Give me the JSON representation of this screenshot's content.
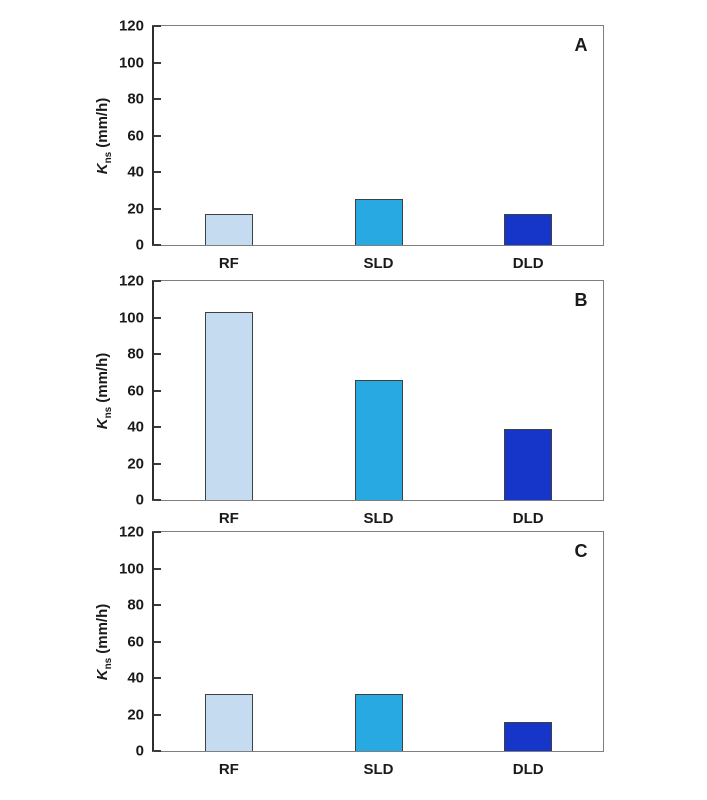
{
  "axis": {
    "ylabel_k": "K",
    "ylabel_sub": "ns",
    "ylabel_unit": "(mm/h)"
  },
  "colors": {
    "bar_fills": [
      "#C5DCF0",
      "#29A9E1",
      "#1636C9"
    ],
    "bar_border": "#404040",
    "frame": "#7e7e7e",
    "axis_line": "#2e2e2e",
    "text": "#1a1a1a"
  },
  "chart_data": [
    {
      "type": "bar",
      "panel_label": "A",
      "categories": [
        "RF",
        "SLD",
        "DLD"
      ],
      "values": [
        17,
        25,
        17
      ],
      "title": "",
      "xlabel": "",
      "ylabel": "Kns (mm/h)",
      "ylim": [
        0,
        120
      ],
      "yticks": [
        0,
        20,
        40,
        60,
        80,
        100,
        120
      ],
      "grid": false,
      "legend": "none"
    },
    {
      "type": "bar",
      "panel_label": "B",
      "categories": [
        "RF",
        "SLD",
        "DLD"
      ],
      "values": [
        103,
        66,
        39
      ],
      "title": "",
      "xlabel": "",
      "ylabel": "Kns (mm/h)",
      "ylim": [
        0,
        120
      ],
      "yticks": [
        0,
        20,
        40,
        60,
        80,
        100,
        120
      ],
      "grid": false,
      "legend": "none"
    },
    {
      "type": "bar",
      "panel_label": "C",
      "categories": [
        "RF",
        "SLD",
        "DLD"
      ],
      "values": [
        31,
        31,
        16
      ],
      "title": "",
      "xlabel": "",
      "ylabel": "Kns (mm/h)",
      "ylim": [
        0,
        120
      ],
      "yticks": [
        0,
        20,
        40,
        60,
        80,
        100,
        120
      ],
      "grid": false,
      "legend": "none"
    }
  ]
}
